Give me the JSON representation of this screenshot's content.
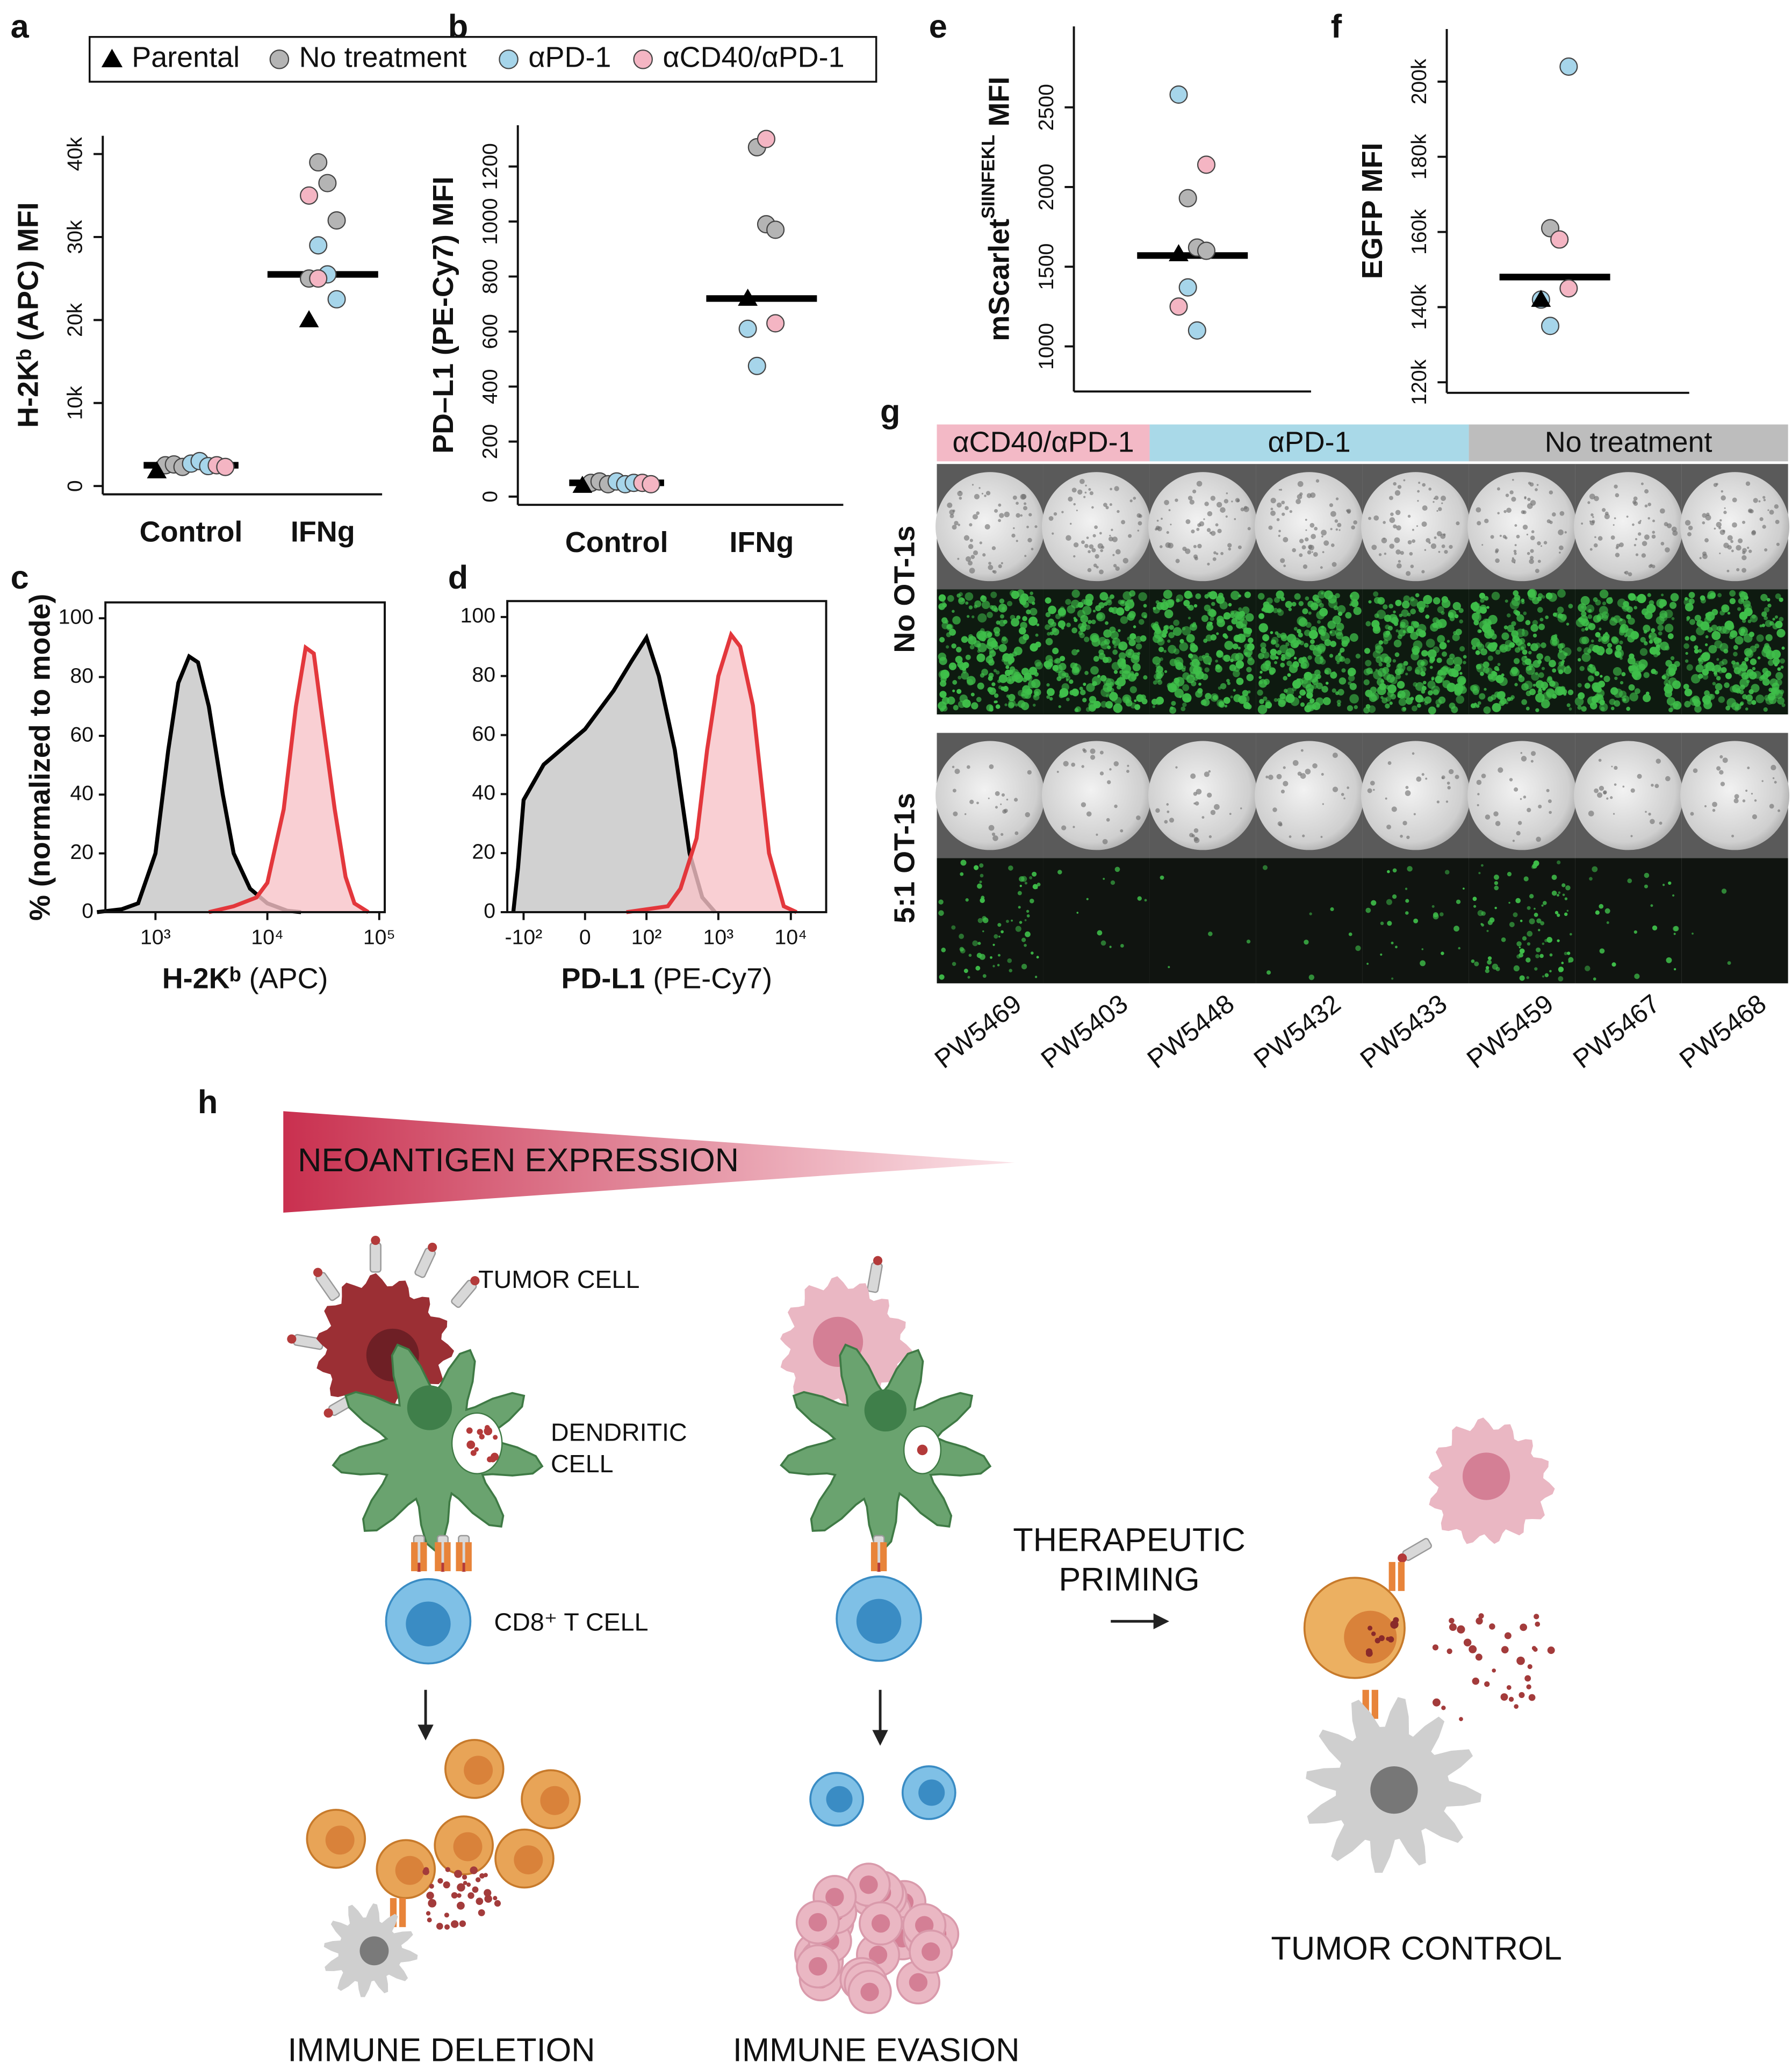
{
  "panel_labels": [
    "a",
    "b",
    "c",
    "d",
    "e",
    "f",
    "g",
    "h"
  ],
  "legend": [
    {
      "name": "Parental",
      "color": "#000000",
      "marker": "triangle"
    },
    {
      "name": "No treatment",
      "color": "#b4b4b4",
      "marker": "circle"
    },
    {
      "name": "αPD-1",
      "color": "#a6d5ea",
      "marker": "circle"
    },
    {
      "name": "αCD40/αPD-1",
      "color": "#f4b5c3",
      "marker": "circle"
    }
  ],
  "chart_data": [
    {
      "type": "strip",
      "ylabel": "H-2Kᵇ (APC) MFI",
      "categories": [
        "Control",
        "IFNg"
      ],
      "ylim": [
        -1000,
        42200
      ],
      "yticks": [
        0,
        {
          "value": 10000,
          "label": "10k"
        },
        {
          "value": 20000,
          "label": "20k"
        },
        {
          "value": 30000,
          "label": "30k"
        },
        {
          "value": 40000,
          "label": "40k"
        }
      ],
      "series": [
        {
          "x": [
            "Control",
            "IFNg"
          ],
          "values": [
            1800,
            20000
          ]
        },
        {
          "x": [
            "Control",
            "Control",
            "Control",
            "IFNg",
            "IFNg",
            "IFNg",
            "IFNg"
          ],
          "values": [
            2500,
            2600,
            2300,
            39000,
            36500,
            32000,
            25000
          ]
        },
        {
          "x": [
            "Control",
            "Control",
            "Control",
            "IFNg",
            "IFNg",
            "IFNg"
          ],
          "values": [
            2700,
            3000,
            2400,
            29000,
            25500,
            22500
          ]
        },
        {
          "x": [
            "Control",
            "Control",
            "IFNg",
            "IFNg"
          ],
          "values": [
            2500,
            2300,
            35000,
            25000
          ]
        }
      ],
      "medians": [
        2500,
        25500
      ]
    },
    {
      "type": "strip",
      "ylabel": "PD–L1 (PE-Cy7) MFI",
      "categories": [
        "Control",
        "IFNg"
      ],
      "ylim": [
        -30,
        1350
      ],
      "yticks": [
        0,
        200,
        400,
        600,
        800,
        1000,
        1200
      ],
      "series": [
        {
          "x": [
            "Control",
            "IFNg"
          ],
          "values": [
            40,
            720
          ]
        },
        {
          "x": [
            "Control",
            "Control",
            "Control",
            "IFNg",
            "IFNg",
            "IFNg"
          ],
          "values": [
            50,
            55,
            45,
            1270,
            990,
            970
          ]
        },
        {
          "x": [
            "Control",
            "Control",
            "Control",
            "IFNg",
            "IFNg"
          ],
          "values": [
            55,
            45,
            50,
            610,
            475
          ]
        },
        {
          "x": [
            "Control",
            "Control",
            "IFNg",
            "IFNg"
          ],
          "values": [
            50,
            45,
            1300,
            630
          ]
        }
      ],
      "medians": [
        50,
        720
      ]
    },
    {
      "type": "area",
      "ylabel": "% (normalized to mode)",
      "xlabel": [
        "H-2Kᵇ",
        "(APC)"
      ],
      "xscale": "log",
      "xlim": [
        357,
        112000
      ],
      "ylim": [
        0,
        105.4
      ],
      "xticks": [
        {
          "value": 1000,
          "label": "10³"
        },
        {
          "value": 10000,
          "label": "10⁴"
        },
        {
          "value": 100000,
          "label": "10⁵"
        }
      ],
      "yticks": [
        0,
        20,
        40,
        60,
        80,
        100
      ],
      "series": [
        {
          "color": "#000000",
          "fill": "#c6c6c6",
          "x": [
            300,
            500,
            700,
            1000,
            1300,
            1600,
            2000,
            2400,
            3000,
            4000,
            5000,
            7000,
            10000,
            15000,
            20000
          ],
          "values": [
            0,
            1,
            3,
            20,
            55,
            78,
            87,
            85,
            70,
            40,
            20,
            8,
            3,
            0.5,
            0
          ]
        },
        {
          "color": "#e3373c",
          "fill": "#f7c3c8",
          "x": [
            3000,
            5000,
            8000,
            10000,
            14000,
            18000,
            22000,
            26000,
            30000,
            40000,
            50000,
            60000,
            80000
          ],
          "values": [
            0,
            2,
            5,
            10,
            35,
            70,
            90,
            88,
            70,
            35,
            12,
            3,
            0
          ]
        }
      ]
    },
    {
      "type": "area",
      "xlabel": [
        "PD-L1",
        "(PE-Cy7)"
      ],
      "xscale": "asinh",
      "xlim": [
        -170,
        30700
      ],
      "ylim": [
        0,
        105.4
      ],
      "xticks": [
        {
          "value": -100,
          "label": "-10²"
        },
        0,
        {
          "value": 100,
          "label": "10²"
        },
        {
          "value": 1000,
          "label": "10³"
        },
        {
          "value": 10000,
          "label": "10⁴"
        }
      ],
      "yticks": [
        0,
        20,
        40,
        60,
        80,
        100
      ],
      "series": [
        {
          "color": "#000000",
          "fill": "#c6c6c6",
          "x": [
            -140,
            -120,
            -100,
            -50,
            0,
            30,
            60,
            100,
            150,
            250,
            400,
            600,
            900
          ],
          "values": [
            0,
            15,
            38,
            50,
            62,
            75,
            85,
            93,
            80,
            55,
            20,
            5,
            0
          ]
        },
        {
          "color": "#e3373c",
          "fill": "#f7c3c8",
          "x": [
            50,
            200,
            300,
            500,
            700,
            1000,
            1500,
            2000,
            3000,
            5000,
            8000,
            12000
          ],
          "values": [
            0,
            2,
            8,
            25,
            55,
            80,
            94,
            90,
            70,
            20,
            2,
            0
          ]
        }
      ]
    },
    {
      "type": "strip",
      "ylabel": {
        "text": "mScarlet",
        "sup": "SIINFEKL",
        "after": " MFI"
      },
      "ylim": [
        717,
        3008
      ],
      "yticks": [
        1000,
        1500,
        2000,
        2500
      ],
      "series": [
        {
          "values": [
            1580
          ]
        },
        {
          "values": [
            1930,
            1620,
            1600
          ]
        },
        {
          "values": [
            2580,
            1370,
            1100
          ]
        },
        {
          "values": [
            2140,
            1250
          ]
        }
      ],
      "medians": [
        1570
      ]
    },
    {
      "type": "strip",
      "ylabel": "EGFP MFI",
      "ylim": [
        117200,
        214000
      ],
      "yticks": [
        {
          "value": 120000,
          "label": "120k"
        },
        {
          "value": 140000,
          "label": "140k"
        },
        {
          "value": 160000,
          "label": "160k"
        },
        {
          "value": 180000,
          "label": "180k"
        },
        {
          "value": 200000,
          "label": "200k"
        }
      ],
      "series": [
        {
          "values": [
            142000
          ]
        },
        {
          "values": [
            161000,
            158000
          ]
        },
        {
          "values": [
            204000,
            142000,
            135000
          ]
        },
        {
          "values": [
            158000,
            145000
          ]
        }
      ],
      "medians": [
        148000
      ]
    }
  ],
  "image_grid": {
    "headers": [
      {
        "text": "αCD40/αPD-1",
        "color": "#f3b9c6",
        "span": 2
      },
      {
        "text": "αPD-1",
        "color": "#a9d9e8",
        "span": 3
      },
      {
        "text": "No treatment",
        "color": "#bdbdbd",
        "span": 3
      }
    ],
    "rows": [
      "No OT-1s",
      "5:1 OT-1s"
    ],
    "columns": [
      "PW5469",
      "PW5403",
      "PW5448",
      "PW5432",
      "PW5433",
      "PW5459",
      "PW5467",
      "PW5468"
    ]
  },
  "diagram": {
    "title": "NEOANTIGEN EXPRESSION",
    "labels": [
      "TUMOR CELL",
      "DENDRITIC",
      "CELL",
      "CD8⁺ T CELL",
      "THERAPEUTIC",
      "PRIMING",
      "TUMOR CONTROL",
      "IMMUNE DELETION",
      "IMMUNE EVASION"
    ]
  }
}
